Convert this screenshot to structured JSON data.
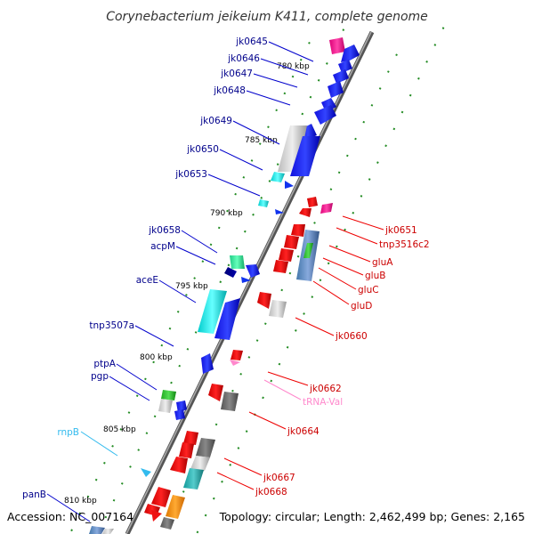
{
  "title": "Corynebacterium jeikeium K411, complete genome",
  "footer": {
    "accession": "Accession: NC_007164",
    "topology": "Topology: circular; Length: 2,462,499 bp; Genes: 2,165"
  },
  "colors": {
    "plus_label": "#00008b",
    "minus_label": "#cc0000",
    "trna_label": "#ff88cc",
    "rna_label": "#33bbee",
    "axis": "#888888",
    "tick": "#228b22"
  },
  "scale_labels": [
    "780 kbp",
    "785 kbp",
    "790 kbp",
    "795 kbp",
    "800 kbp",
    "805 kbp",
    "810 kbp"
  ],
  "left_genes": [
    "jk0645",
    "jk0646",
    "jk0647",
    "jk0648",
    "jk0649",
    "jk0650",
    "jk0653",
    "jk0658",
    "acpM",
    "aceE",
    "tnp3507a",
    "ptpA",
    "pgp",
    "rnpB",
    "panB"
  ],
  "right_genes": [
    "jk0651",
    "tnp3516c2",
    "gluA",
    "gluB",
    "gluC",
    "gluD",
    "jk0660",
    "jk0662",
    "tRNA-Val",
    "jk0664",
    "jk0667",
    "jk0668"
  ]
}
